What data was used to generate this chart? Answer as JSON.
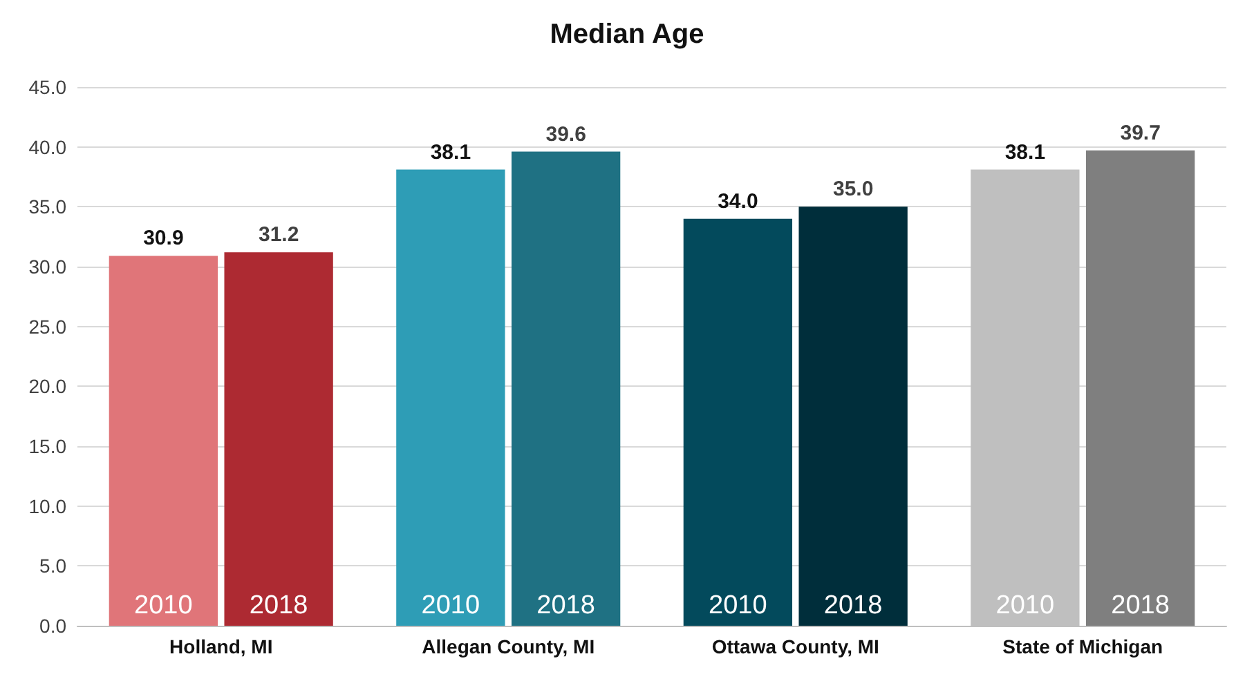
{
  "chart_data": {
    "type": "bar",
    "title": "Median Age",
    "categories": [
      "Holland, MI",
      "Allegan County, MI",
      "Ottawa County, MI",
      "State of Michigan"
    ],
    "series": [
      {
        "name": "2010",
        "colors": [
          "#e07579",
          "#2e9db6",
          "#034a5c",
          "#bfbfbf"
        ],
        "values": [
          30.9,
          38.1,
          34.0,
          38.1
        ],
        "value_labels": [
          "30.9",
          "38.1",
          "34.0",
          "38.1"
        ]
      },
      {
        "name": "2018",
        "colors": [
          "#ad2a32",
          "#1f7183",
          "#002e3b",
          "#7f7f7f"
        ],
        "values": [
          31.2,
          39.6,
          35.0,
          39.7
        ],
        "value_labels": [
          "31.2",
          "39.6",
          "35.0",
          "39.7"
        ]
      }
    ],
    "ylim": [
      0,
      45
    ],
    "yticks": [
      {
        "value": 0,
        "label": "0.0"
      },
      {
        "value": 5,
        "label": "5.0"
      },
      {
        "value": 10,
        "label": "10.0"
      },
      {
        "value": 15,
        "label": "15.0"
      },
      {
        "value": 20,
        "label": "20.0"
      },
      {
        "value": 25,
        "label": "25.0"
      },
      {
        "value": 30,
        "label": "30.0"
      },
      {
        "value": 35,
        "label": "35.0"
      },
      {
        "value": 40,
        "label": "40.0"
      },
      {
        "value": 45,
        "label": "45.0"
      }
    ],
    "grid": true,
    "legend": false
  }
}
